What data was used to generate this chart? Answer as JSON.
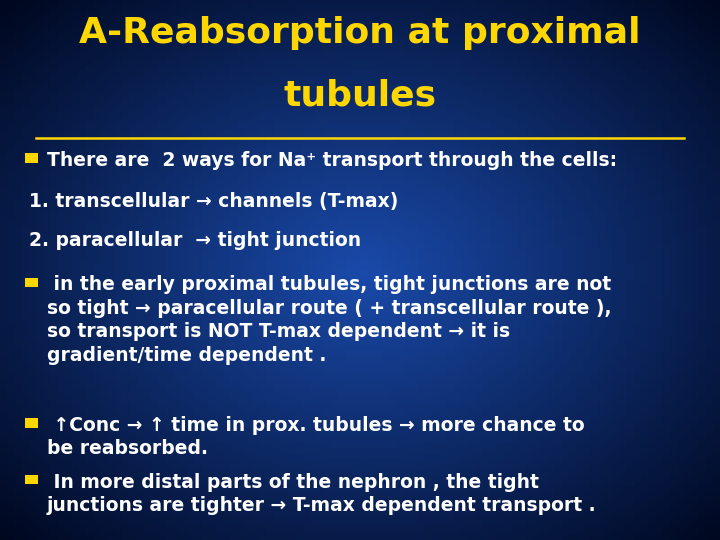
{
  "bg_color_center": "#1a4aaa",
  "bg_color_corner": "#000820",
  "title_line1": "A-Reabsorption at proximal",
  "title_line2": "tubules",
  "title_color": "#FFD700",
  "title_fontsize": 26,
  "text_color": "#FFFFFF",
  "bullet_color": "#FFD700",
  "body_fontsize": 13.5,
  "bullet1_line1": "There are  2 ways for Na⁺ transport through the cells:",
  "bullet1_line2": "1. transcellular → channels (T-max)",
  "bullet1_line3": "2. paracellular  → tight junction",
  "bullet2_text": " in the early proximal tubules, tight junctions are not\nso tight → paracellular route ( + transcellular route ),\nso transport is NOT T-max dependent → it is\ngradient/time dependent .",
  "bullet3_text": " ↑Conc → ↑ time in prox. tubules → more chance to\nbe reabsorbed.",
  "bullet4_text": " In more distal parts of the nephron , the tight\njunctions are tighter → T-max dependent transport ."
}
